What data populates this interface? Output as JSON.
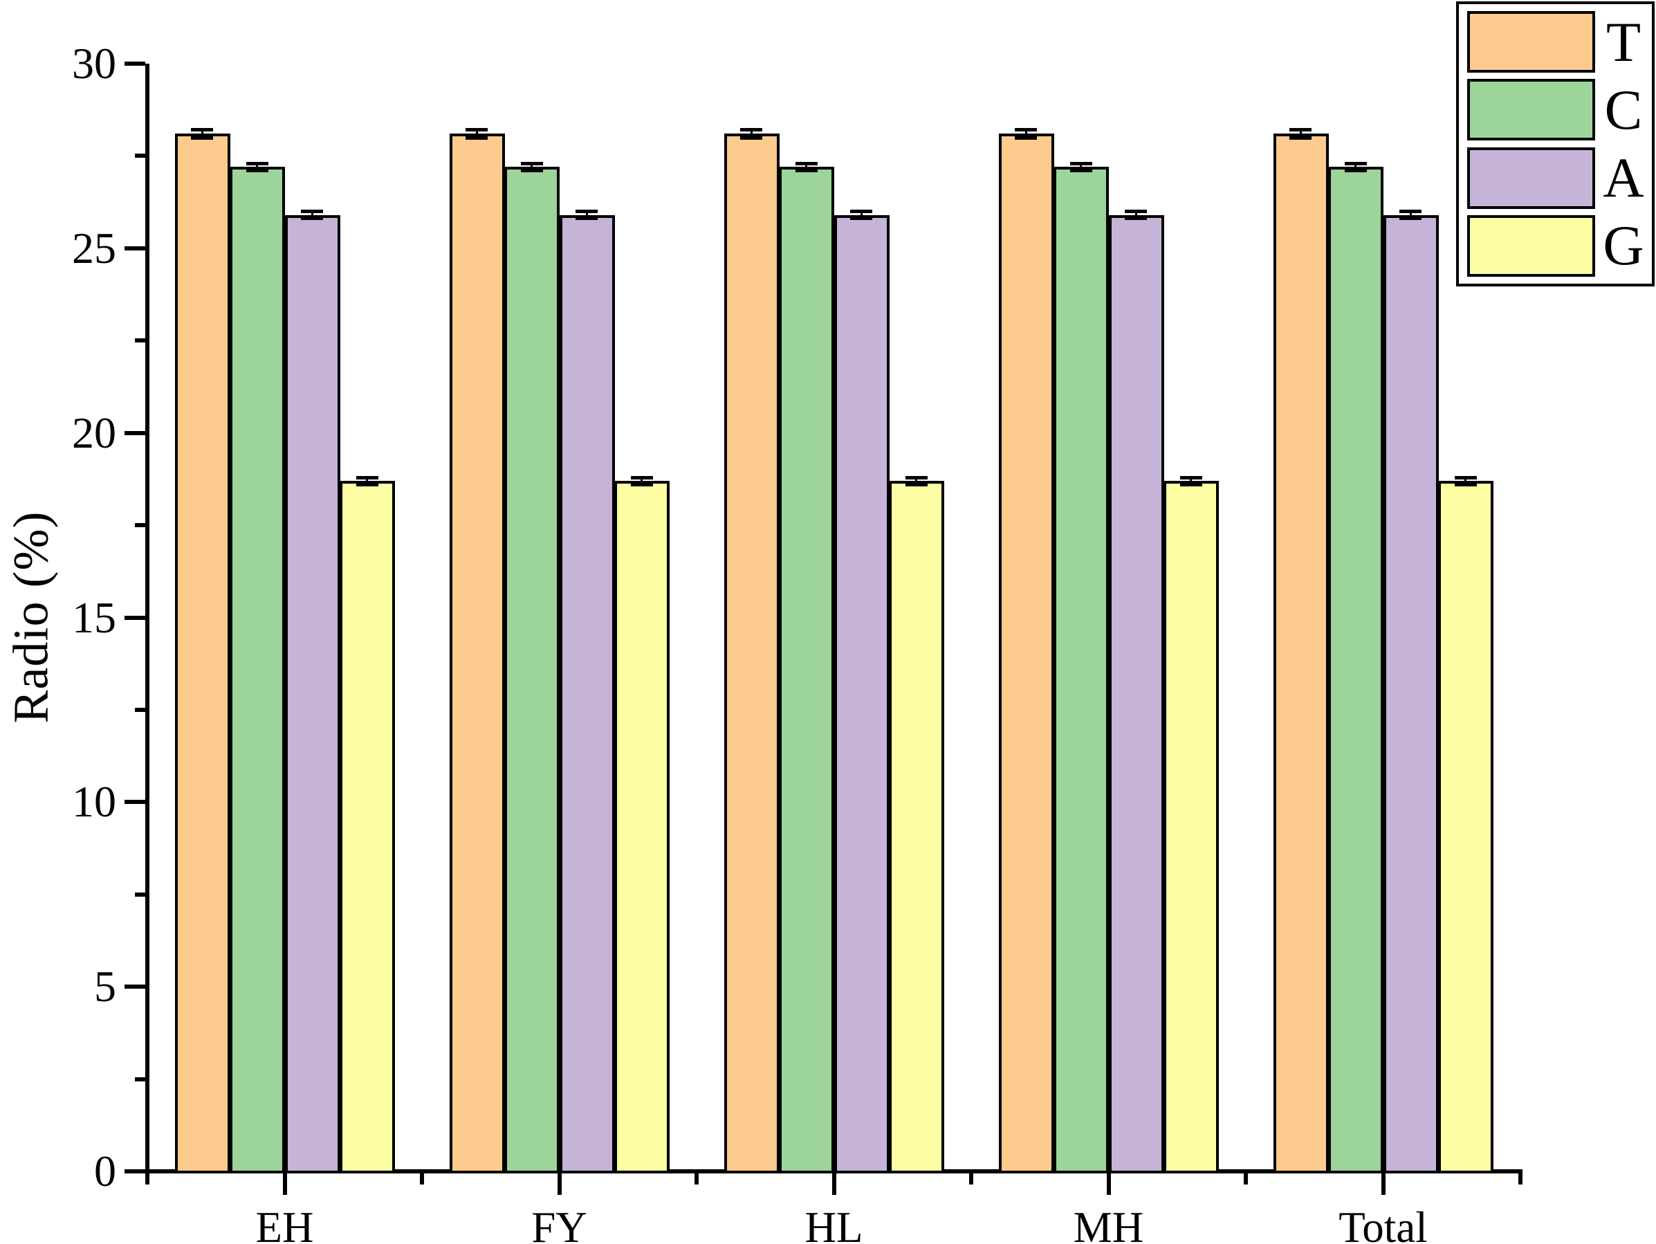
{
  "figure": {
    "background_color": "#ffffff",
    "axis_color": "#000000",
    "bar_border_color": "#000000"
  },
  "chart_data": {
    "type": "bar",
    "title": "",
    "xlabel": "",
    "ylabel": "Radio (%)",
    "categories": [
      "EH",
      "FY",
      "HL",
      "MH",
      "Total"
    ],
    "series": [
      {
        "name": "T",
        "color": "#FCCB8D",
        "values": [
          28.1,
          28.1,
          28.1,
          28.1,
          28.1
        ],
        "error": 0.12
      },
      {
        "name": "C",
        "color": "#9CD49A",
        "values": [
          27.2,
          27.2,
          27.2,
          27.2,
          27.2
        ],
        "error": 0.06
      },
      {
        "name": "A",
        "color": "#C5B4D7",
        "values": [
          25.9,
          25.9,
          25.9,
          25.9,
          25.9
        ],
        "error": 0.1
      },
      {
        "name": "G",
        "color": "#FDFDA3",
        "values": [
          18.7,
          18.7,
          18.7,
          18.7,
          18.7
        ],
        "error": 0.06
      }
    ],
    "ylim": [
      0,
      30
    ],
    "yticks_major": [
      0,
      5,
      10,
      15,
      20,
      25,
      30
    ],
    "ytick_minor_step": 2.5,
    "grid": false,
    "legend_position": "top-right",
    "error_bars": true
  }
}
